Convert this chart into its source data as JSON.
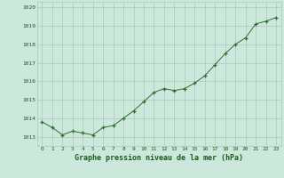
{
  "x": [
    0,
    1,
    2,
    3,
    4,
    5,
    6,
    7,
    8,
    9,
    10,
    11,
    12,
    13,
    14,
    15,
    16,
    17,
    18,
    19,
    20,
    21,
    22,
    23
  ],
  "y": [
    1013.8,
    1013.5,
    1013.1,
    1013.3,
    1013.2,
    1013.1,
    1013.5,
    1013.6,
    1014.0,
    1014.4,
    1014.9,
    1015.4,
    1015.6,
    1015.5,
    1015.6,
    1015.9,
    1016.3,
    1016.9,
    1017.5,
    1018.0,
    1018.35,
    1019.1,
    1019.25,
    1019.45
  ],
  "line_color": "#2d6e2d",
  "marker": "+",
  "marker_color": "#2d6e2d",
  "bg_color": "#cce8dc",
  "grid_color": "#aac8b8",
  "xlabel": "Graphe pression niveau de la mer (hPa)",
  "xlabel_color": "#1a5c1a",
  "tick_color": "#1a5c1a",
  "ylim": [
    1012.5,
    1020.3
  ],
  "xlim": [
    -0.5,
    23.5
  ],
  "yticks": [
    1013,
    1014,
    1015,
    1016,
    1017,
    1018,
    1019,
    1020
  ],
  "xticks": [
    0,
    1,
    2,
    3,
    4,
    5,
    6,
    7,
    8,
    9,
    10,
    11,
    12,
    13,
    14,
    15,
    16,
    17,
    18,
    19,
    20,
    21,
    22,
    23
  ]
}
